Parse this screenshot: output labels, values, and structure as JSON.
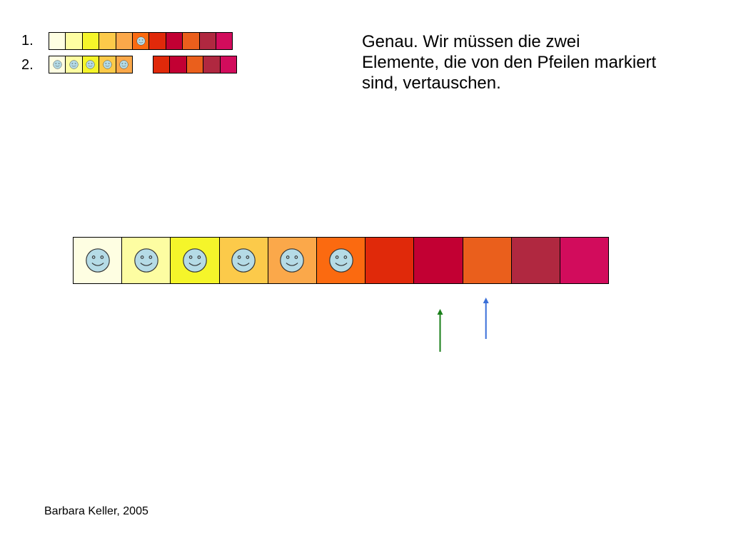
{
  "rows": [
    {
      "label": "1.",
      "cells": [
        {
          "color": "#fefee2",
          "smiley": false
        },
        {
          "color": "#fdfda2",
          "smiley": false
        },
        {
          "color": "#f5f52a",
          "smiley": false
        },
        {
          "color": "#fcca4a",
          "smiley": false
        },
        {
          "color": "#fba84a",
          "smiley": false
        },
        {
          "color": "#fb6a10",
          "smiley": true
        },
        {
          "color": "#e0290a",
          "smiley": false
        },
        {
          "color": "#c20033",
          "smiley": false
        },
        {
          "color": "#ea5f1c",
          "smiley": false
        },
        {
          "color": "#b02840",
          "smiley": false
        },
        {
          "color": "#d20c5c",
          "smiley": false
        }
      ]
    },
    {
      "label": "2.",
      "cells": [
        {
          "color": "#fefee2",
          "smiley": true
        },
        {
          "color": "#fdfda2",
          "smiley": true
        },
        {
          "color": "#f5f52a",
          "smiley": true
        },
        {
          "color": "#fcca4a",
          "smiley": true
        },
        {
          "color": "#fba84a",
          "smiley": true
        }
      ],
      "cells_right": [
        {
          "color": "#e0290a",
          "smiley": false
        },
        {
          "color": "#c20033",
          "smiley": false
        },
        {
          "color": "#ea5f1c",
          "smiley": false
        },
        {
          "color": "#b02840",
          "smiley": false
        },
        {
          "color": "#d20c5c",
          "smiley": false
        }
      ]
    }
  ],
  "main_row": [
    {
      "color": "#fefee2",
      "smiley": true
    },
    {
      "color": "#fdfda2",
      "smiley": true
    },
    {
      "color": "#f5f52a",
      "smiley": true
    },
    {
      "color": "#fcca4a",
      "smiley": true
    },
    {
      "color": "#fba84a",
      "smiley": true
    },
    {
      "color": "#fb6a10",
      "smiley": true
    },
    {
      "color": "#e0290a",
      "smiley": false
    },
    {
      "color": "#c20033",
      "smiley": false
    },
    {
      "color": "#ea5f1c",
      "smiley": false
    },
    {
      "color": "#b02840",
      "smiley": false
    },
    {
      "color": "#d20c5c",
      "smiley": false
    }
  ],
  "arrows": [
    {
      "name": "green-arrow",
      "target_cell": 7,
      "color": "#1a7f1a"
    },
    {
      "name": "blue-arrow",
      "target_cell": 8,
      "color": "#3a6fd8"
    }
  ],
  "smiley_color": "#b5dbe6",
  "explanation": "Genau. Wir müssen die zwei Elemente, die von den Pfeilen markiert sind, vertauschen.",
  "credit": "Barbara Keller, 2005"
}
